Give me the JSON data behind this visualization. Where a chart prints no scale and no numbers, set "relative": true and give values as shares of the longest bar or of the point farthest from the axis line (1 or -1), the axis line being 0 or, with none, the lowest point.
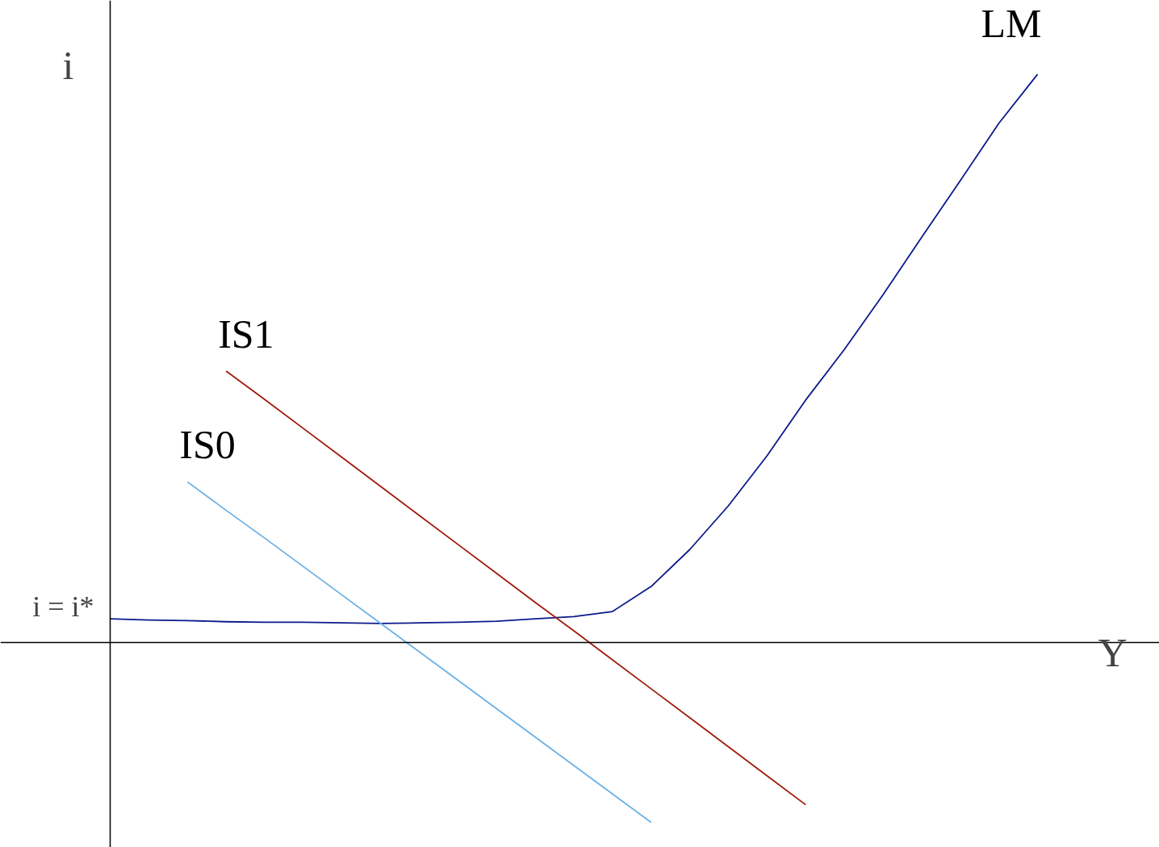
{
  "chart_data": {
    "type": "line",
    "relative": true,
    "xlabel": "Y",
    "ylabel": "i",
    "categories": [
      null,
      null,
      null,
      null,
      null,
      null,
      null,
      null,
      null,
      null,
      null,
      null,
      null,
      null,
      null,
      null,
      null,
      null,
      null,
      null,
      null,
      null,
      null,
      null,
      null
    ],
    "series": [
      {
        "name": "LM",
        "color": "#0a1a8c",
        "values": [
          0.042,
          0.04,
          0.039,
          0.037,
          0.036,
          0.036,
          0.035,
          0.034,
          0.035,
          0.036,
          0.038,
          0.042,
          0.046,
          0.055,
          0.099,
          0.164,
          0.241,
          0.329,
          0.427,
          0.516,
          0.612,
          0.713,
          0.813,
          0.914,
          1
        ]
      },
      {
        "name": "IS0",
        "color": "#6ab0e6",
        "values": [
          null,
          null,
          0.283,
          0.233,
          0.184,
          0.134,
          0.084,
          0.034,
          -0.016,
          -0.066,
          -0.116,
          -0.166,
          -0.216,
          -0.266,
          -0.316,
          null,
          null,
          null,
          null,
          null,
          null,
          null,
          null,
          null,
          null
        ]
      },
      {
        "name": "IS1",
        "color": "#a01a0a",
        "values": [
          null,
          null,
          null,
          0.478,
          0.428,
          0.377,
          0.326,
          0.275,
          0.224,
          0.173,
          0.122,
          0.071,
          0.021,
          -0.03,
          -0.081,
          -0.132,
          -0.183,
          -0.234,
          -0.285,
          null,
          null,
          null,
          null,
          null,
          null
        ]
      }
    ],
    "annotations": [
      "i = i*"
    ],
    "legend": false,
    "marker": "none",
    "line_style": "solid"
  }
}
